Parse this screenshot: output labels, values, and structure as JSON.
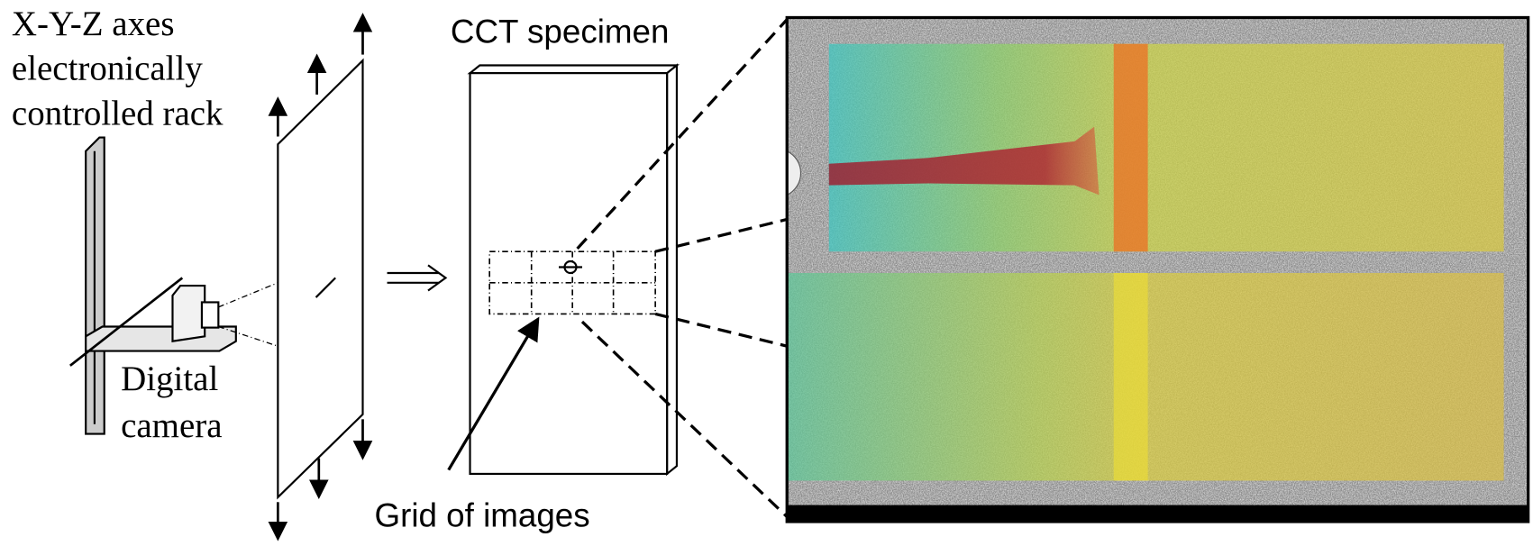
{
  "rack_label": [
    "X-Y-Z axes",
    "electronically",
    "controlled rack"
  ],
  "camera_label": [
    "Digital",
    "camera"
  ],
  "specimen_label": "CCT specimen",
  "grid_label": "Grid of images"
}
